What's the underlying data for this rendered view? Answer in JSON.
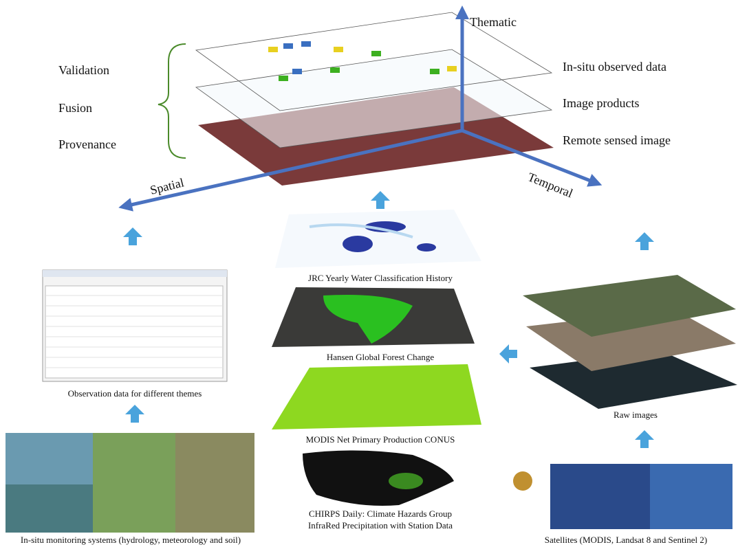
{
  "axes": {
    "thematic": "Thematic",
    "spatial": "Spatial",
    "temporal": "Temporal"
  },
  "stages": [
    "Validation",
    "Fusion",
    "Provenance"
  ],
  "layers": [
    "In-situ observed data",
    "Image products",
    "Remote sensed image"
  ],
  "products": [
    "JRC Yearly Water Classification History",
    "Hansen Global Forest Change",
    "MODIS Net Primary Production CONUS",
    [
      "CHIRPS Daily: Climate Hazards Group",
      "InfraRed Precipitation with Station Data"
    ]
  ],
  "observation": "Observation data for different themes",
  "raw": "Raw images",
  "insitu": "In-situ monitoring systems (hydrology, meteorology and soil)",
  "satellites": "Satellites (MODIS, Landsat 8 and Sentinel 2)"
}
